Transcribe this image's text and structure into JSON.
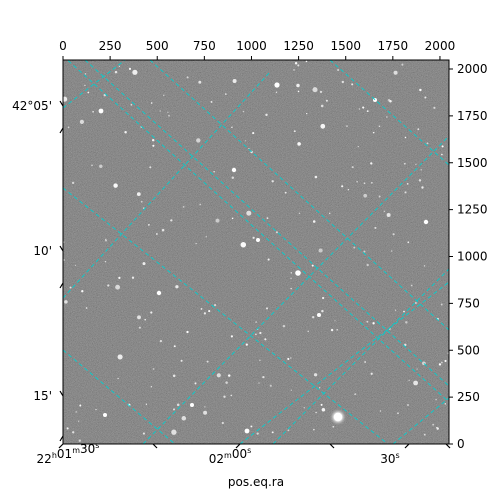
{
  "chart_data": {
    "type": "image",
    "xlabel": "pos.eq.ra",
    "pixel_axes": {
      "top": {
        "ticks": [
          0,
          250,
          500,
          750,
          1000,
          1250,
          1500,
          1750,
          2000
        ],
        "range": [
          0,
          2048
        ]
      },
      "right": {
        "ticks": [
          0,
          250,
          500,
          750,
          1000,
          1250,
          1500,
          1750,
          2000
        ],
        "range": [
          0,
          2048
        ]
      }
    },
    "ra_ticks_bottom": [
      {
        "label": "22h01m30s",
        "h": "22",
        "m": "01",
        "s": "30"
      },
      {
        "label": "02m00s",
        "m": "02",
        "s": "00"
      },
      {
        "label": "30s",
        "s": "30"
      }
    ],
    "dec_ticks_left": [
      "42°05'",
      "10'",
      "15'"
    ],
    "grid": true,
    "grid_color": "#00d0d0",
    "image_colormap": "gray"
  }
}
